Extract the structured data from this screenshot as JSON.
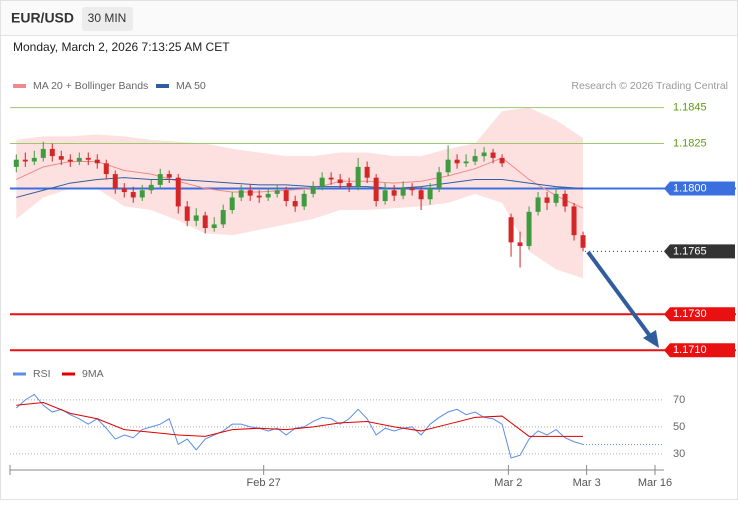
{
  "header": {
    "symbol": "EUR/USD",
    "interval": "30 MIN",
    "datetime": "Monday, March 2, 2026 7:13:25 AM CET"
  },
  "chart_data": [
    {
      "type": "candlestick",
      "credit": "Research © 2026 Trading Central",
      "xlim": [
        -0.7,
        72
      ],
      "ylim": [
        1.1704,
        1.1852
      ],
      "up_color": "#3f9b3f",
      "down_color": "#d32626",
      "candles": [
        [
          1.1812,
          1.1819,
          1.1809,
          1.1816
        ],
        [
          1.1816,
          1.182,
          1.1812,
          1.1815
        ],
        [
          1.1815,
          1.1821,
          1.1813,
          1.1817
        ],
        [
          1.1817,
          1.1826,
          1.1815,
          1.1822
        ],
        [
          1.1822,
          1.1825,
          1.1815,
          1.1818
        ],
        [
          1.1818,
          1.1821,
          1.1813,
          1.1816
        ],
        [
          1.1816,
          1.1819,
          1.1812,
          1.1815
        ],
        [
          1.1815,
          1.182,
          1.1813,
          1.1817
        ],
        [
          1.1817,
          1.182,
          1.1813,
          1.1816
        ],
        [
          1.1816,
          1.1819,
          1.1811,
          1.1814
        ],
        [
          1.1814,
          1.1816,
          1.1805,
          1.1808
        ],
        [
          1.1808,
          1.181,
          1.1797,
          1.18
        ],
        [
          1.18,
          1.1803,
          1.1795,
          1.1798
        ],
        [
          1.1798,
          1.1801,
          1.1792,
          1.1795
        ],
        [
          1.1795,
          1.1802,
          1.1793,
          1.1799
        ],
        [
          1.1799,
          1.1805,
          1.1797,
          1.1802
        ],
        [
          1.1802,
          1.1811,
          1.18,
          1.1808
        ],
        [
          1.1808,
          1.181,
          1.1803,
          1.1806
        ],
        [
          1.1806,
          1.1808,
          1.1786,
          1.179
        ],
        [
          1.179,
          1.1793,
          1.1779,
          1.1782
        ],
        [
          1.1782,
          1.1789,
          1.1779,
          1.1785
        ],
        [
          1.1785,
          1.1787,
          1.1775,
          1.1778
        ],
        [
          1.1778,
          1.1784,
          1.1776,
          1.178
        ],
        [
          1.178,
          1.1791,
          1.1778,
          1.1788
        ],
        [
          1.1788,
          1.1798,
          1.1786,
          1.1795
        ],
        [
          1.1795,
          1.1802,
          1.1793,
          1.1799
        ],
        [
          1.1799,
          1.1802,
          1.1793,
          1.1796
        ],
        [
          1.1796,
          1.1799,
          1.1792,
          1.1795
        ],
        [
          1.1795,
          1.18,
          1.1793,
          1.1797
        ],
        [
          1.1797,
          1.1802,
          1.1795,
          1.1799
        ],
        [
          1.1799,
          1.1801,
          1.179,
          1.1793
        ],
        [
          1.1793,
          1.1796,
          1.1787,
          1.179
        ],
        [
          1.179,
          1.1799,
          1.1788,
          1.1797
        ],
        [
          1.1797,
          1.1804,
          1.1795,
          1.1801
        ],
        [
          1.1801,
          1.1809,
          1.1799,
          1.1806
        ],
        [
          1.1806,
          1.1809,
          1.1802,
          1.1805
        ],
        [
          1.1805,
          1.1808,
          1.18,
          1.1803
        ],
        [
          1.1803,
          1.1806,
          1.1798,
          1.1801
        ],
        [
          1.1801,
          1.1817,
          1.1799,
          1.1812
        ],
        [
          1.1812,
          1.1815,
          1.1803,
          1.1806
        ],
        [
          1.1806,
          1.1808,
          1.179,
          1.1793
        ],
        [
          1.1793,
          1.1803,
          1.1791,
          1.1799
        ],
        [
          1.1799,
          1.1802,
          1.1793,
          1.1796
        ],
        [
          1.1796,
          1.1804,
          1.1794,
          1.18
        ],
        [
          1.18,
          1.1803,
          1.1796,
          1.1799
        ],
        [
          1.1799,
          1.1801,
          1.1788,
          1.1794
        ],
        [
          1.1794,
          1.1803,
          1.1791,
          1.18
        ],
        [
          1.18,
          1.1812,
          1.1798,
          1.1809
        ],
        [
          1.1809,
          1.1824,
          1.1807,
          1.1816
        ],
        [
          1.1816,
          1.1819,
          1.1811,
          1.1814
        ],
        [
          1.1814,
          1.1819,
          1.1812,
          1.1815
        ],
        [
          1.1815,
          1.1822,
          1.1813,
          1.1818
        ],
        [
          1.1818,
          1.1823,
          1.1815,
          1.182
        ],
        [
          1.182,
          1.1822,
          1.1814,
          1.1817
        ],
        [
          1.1817,
          1.1819,
          1.1812,
          1.1814
        ],
        [
          1.1784,
          1.1786,
          1.1762,
          1.177
        ],
        [
          1.177,
          1.1776,
          1.1756,
          1.1768
        ],
        [
          1.1768,
          1.179,
          1.1766,
          1.1787
        ],
        [
          1.1787,
          1.1798,
          1.1785,
          1.1795
        ],
        [
          1.1795,
          1.1798,
          1.1788,
          1.1792
        ],
        [
          1.1792,
          1.18,
          1.179,
          1.1797
        ],
        [
          1.1797,
          1.1799,
          1.1787,
          1.179
        ],
        [
          1.179,
          1.1792,
          1.1771,
          1.1774
        ],
        [
          1.1774,
          1.1776,
          1.1765,
          1.1767
        ]
      ],
      "series": [
        {
          "name": "MA 20 + Bollinger Bands",
          "color": "#f08a8a",
          "band_color": "#fde1e1",
          "x": [
            0,
            3,
            6,
            9,
            12,
            15,
            18,
            21,
            24,
            27,
            30,
            33,
            36,
            39,
            42,
            45,
            48,
            51,
            54,
            57,
            60,
            63
          ],
          "values": [
            1.1805,
            1.1812,
            1.1815,
            1.1815,
            1.181,
            1.1808,
            1.1804,
            1.18,
            1.1798,
            1.1798,
            1.1799,
            1.18,
            1.1804,
            1.1804,
            1.1803,
            1.1804,
            1.1807,
            1.1811,
            1.1817,
            1.1805,
            1.1796,
            1.1789
          ],
          "upper": [
            1.1827,
            1.1829,
            1.1829,
            1.183,
            1.1829,
            1.1827,
            1.1826,
            1.1825,
            1.1822,
            1.182,
            1.1818,
            1.1818,
            1.182,
            1.182,
            1.1818,
            1.1818,
            1.1822,
            1.1825,
            1.1843,
            1.1845,
            1.1838,
            1.1828
          ],
          "lower": [
            1.1783,
            1.1795,
            1.18,
            1.18,
            1.179,
            1.1788,
            1.1782,
            1.1775,
            1.1774,
            1.1777,
            1.178,
            1.1783,
            1.1788,
            1.1788,
            1.1789,
            1.179,
            1.1792,
            1.1797,
            1.1792,
            1.1765,
            1.1755,
            1.175
          ]
        },
        {
          "name": "MA 50",
          "color": "#2f5d9e",
          "x": [
            0,
            3,
            6,
            9,
            12,
            15,
            18,
            21,
            24,
            27,
            30,
            33,
            36,
            39,
            42,
            45,
            48,
            51,
            54,
            57,
            60,
            63
          ],
          "values": [
            1.1795,
            1.1799,
            1.1803,
            1.1805,
            1.1806,
            1.1805,
            1.1805,
            1.1804,
            1.1803,
            1.1802,
            1.1802,
            1.1801,
            1.1801,
            1.1801,
            1.18,
            1.1801,
            1.1803,
            1.1805,
            1.1805,
            1.1803,
            1.1801,
            1.18
          ]
        }
      ],
      "levels": [
        {
          "value": 1.1845,
          "color": "#9cc86a",
          "text_color": "#5e9a14",
          "style": "line",
          "tag": false
        },
        {
          "value": 1.1825,
          "color": "#9cc86a",
          "text_color": "#5e9a14",
          "style": "line",
          "tag": false
        },
        {
          "value": 1.18,
          "label": "1.1800",
          "color": "#3b6fe0",
          "text_color": "#ffffff",
          "style": "line",
          "tag": true
        },
        {
          "value": 1.1765,
          "color": "#333333",
          "text_color": "#ffffff",
          "style": "dotted",
          "tag": true
        },
        {
          "value": 1.173,
          "label": "1.1730",
          "color": "#e81010",
          "text_color": "#ffffff",
          "style": "line",
          "tag": true
        },
        {
          "value": 1.171,
          "label": "1.1710",
          "color": "#e81010",
          "text_color": "#ffffff",
          "style": "line",
          "tag": true
        }
      ]
    },
    {
      "type": "line",
      "xlim": [
        -0.7,
        72
      ],
      "ylim": [
        24,
        81
      ],
      "yticks": [
        30,
        50,
        70
      ],
      "xticks": [
        {
          "value": 27.5,
          "label": "Feb 27"
        },
        {
          "value": 54.7,
          "label": "Mar 2"
        },
        {
          "value": 63.4,
          "label": "Mar 3"
        },
        {
          "value": 71,
          "label": "Mar 16"
        }
      ],
      "series": [
        {
          "name": "RSI",
          "color": "#5b8ee6",
          "values": [
            64,
            70,
            74,
            66,
            61,
            63,
            59,
            56,
            52,
            56,
            49,
            41,
            44,
            42,
            48,
            50,
            52,
            56,
            37,
            41,
            33,
            41,
            44,
            47,
            52,
            52,
            50,
            49,
            47,
            49,
            44,
            49,
            50,
            54,
            57,
            56,
            52,
            56,
            63,
            56,
            44,
            49,
            47,
            49,
            50,
            44,
            52,
            57,
            61,
            63,
            59,
            61,
            57,
            56,
            52,
            27,
            29,
            41,
            47,
            44,
            48,
            42,
            39,
            37
          ]
        },
        {
          "name": "9MA",
          "color": "#e00000",
          "x": [
            0,
            3,
            6,
            9,
            12,
            15,
            18,
            21,
            24,
            27,
            30,
            33,
            36,
            39,
            42,
            45,
            48,
            51,
            54,
            57,
            60,
            63
          ],
          "values": [
            66,
            68,
            60,
            56,
            48,
            46,
            44,
            43,
            48,
            49,
            48,
            50,
            53,
            54,
            50,
            47,
            52,
            57,
            58,
            43,
            43,
            43
          ]
        }
      ]
    }
  ]
}
